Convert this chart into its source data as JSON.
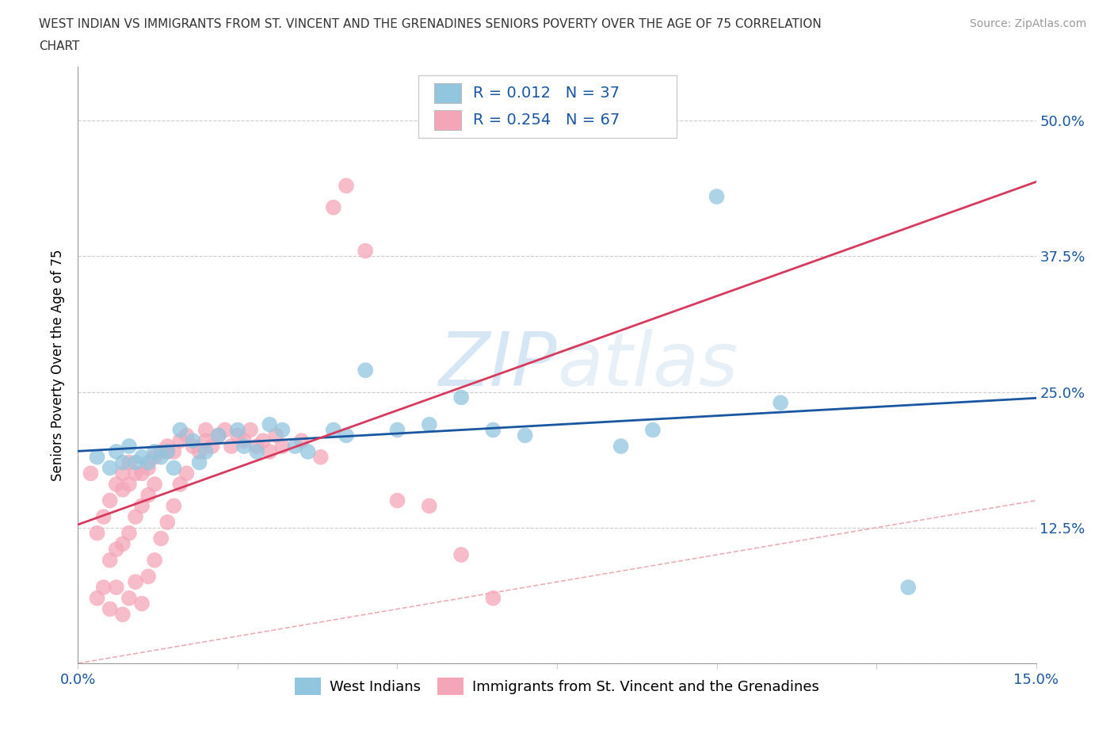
{
  "title_line1": "WEST INDIAN VS IMMIGRANTS FROM ST. VINCENT AND THE GRENADINES SENIORS POVERTY OVER THE AGE OF 75 CORRELATION",
  "title_line2": "CHART",
  "source": "Source: ZipAtlas.com",
  "ylabel": "Seniors Poverty Over the Age of 75",
  "xlim": [
    0.0,
    0.15
  ],
  "ylim": [
    0.0,
    0.55
  ],
  "blue_color": "#92c5de",
  "pink_color": "#f4a6b8",
  "blue_line_color": "#1a56a0",
  "pink_line_color": "#d63b5e",
  "diag_line_color": "#e8b4b8",
  "watermark_color": "#c8dff0",
  "tick_label_color": "#1a56a0",
  "west_indians_x": [
    0.003,
    0.005,
    0.006,
    0.007,
    0.008,
    0.009,
    0.01,
    0.011,
    0.012,
    0.013,
    0.014,
    0.015,
    0.016,
    0.018,
    0.019,
    0.02,
    0.022,
    0.025,
    0.026,
    0.028,
    0.03,
    0.032,
    0.034,
    0.036,
    0.04,
    0.042,
    0.045,
    0.05,
    0.055,
    0.06,
    0.065,
    0.07,
    0.085,
    0.09,
    0.1,
    0.11,
    0.13
  ],
  "west_indians_y": [
    0.19,
    0.18,
    0.195,
    0.185,
    0.2,
    0.185,
    0.19,
    0.185,
    0.195,
    0.19,
    0.195,
    0.18,
    0.215,
    0.205,
    0.185,
    0.195,
    0.21,
    0.215,
    0.2,
    0.195,
    0.22,
    0.215,
    0.2,
    0.195,
    0.215,
    0.21,
    0.27,
    0.215,
    0.22,
    0.245,
    0.215,
    0.21,
    0.2,
    0.215,
    0.43,
    0.24,
    0.07
  ],
  "svg_x": [
    0.002,
    0.003,
    0.003,
    0.004,
    0.004,
    0.005,
    0.005,
    0.005,
    0.006,
    0.006,
    0.006,
    0.007,
    0.007,
    0.007,
    0.007,
    0.008,
    0.008,
    0.008,
    0.008,
    0.009,
    0.009,
    0.009,
    0.01,
    0.01,
    0.01,
    0.011,
    0.011,
    0.011,
    0.012,
    0.012,
    0.012,
    0.013,
    0.013,
    0.014,
    0.014,
    0.014,
    0.015,
    0.015,
    0.016,
    0.016,
    0.017,
    0.017,
    0.018,
    0.019,
    0.02,
    0.02,
    0.021,
    0.022,
    0.023,
    0.024,
    0.025,
    0.026,
    0.027,
    0.028,
    0.029,
    0.03,
    0.031,
    0.032,
    0.035,
    0.038,
    0.04,
    0.042,
    0.045,
    0.05,
    0.055,
    0.06,
    0.065
  ],
  "svg_y": [
    0.175,
    0.06,
    0.12,
    0.07,
    0.135,
    0.05,
    0.095,
    0.15,
    0.07,
    0.105,
    0.165,
    0.045,
    0.11,
    0.16,
    0.175,
    0.06,
    0.12,
    0.165,
    0.185,
    0.075,
    0.135,
    0.175,
    0.055,
    0.145,
    0.175,
    0.08,
    0.155,
    0.18,
    0.095,
    0.165,
    0.19,
    0.115,
    0.195,
    0.13,
    0.195,
    0.2,
    0.145,
    0.195,
    0.165,
    0.205,
    0.175,
    0.21,
    0.2,
    0.195,
    0.205,
    0.215,
    0.2,
    0.21,
    0.215,
    0.2,
    0.21,
    0.205,
    0.215,
    0.2,
    0.205,
    0.195,
    0.21,
    0.2,
    0.205,
    0.19,
    0.42,
    0.44,
    0.38,
    0.15,
    0.145,
    0.1,
    0.06
  ]
}
